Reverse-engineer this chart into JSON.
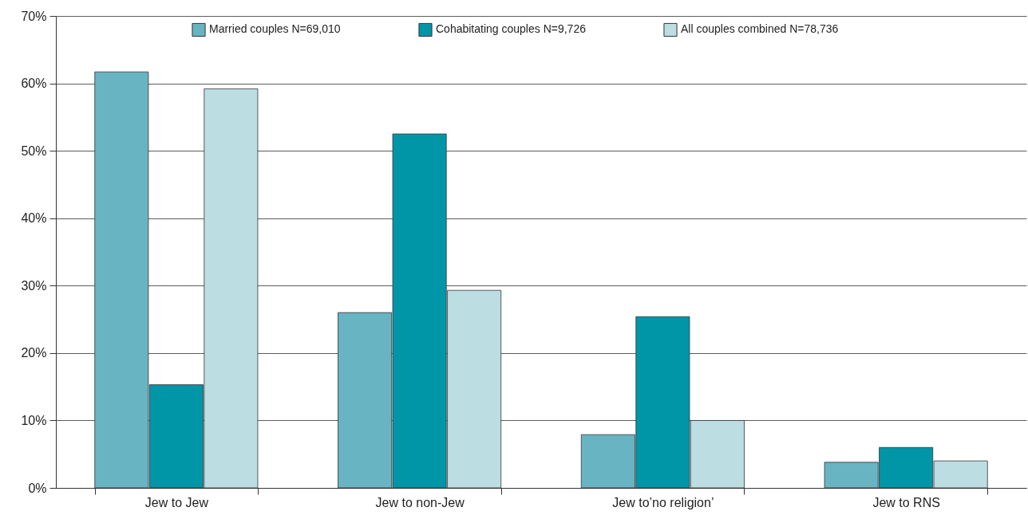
{
  "chart_data": {
    "type": "bar",
    "categories": [
      "Jew to Jew",
      "Jew to non-Jew",
      "Jew to’no religion’",
      "Jew to RNS"
    ],
    "series": [
      {
        "name": "Married couples N=69,010",
        "color": "#68b4c3",
        "values": [
          61.7,
          26,
          7.9,
          3.8
        ]
      },
      {
        "name": "Cohabitating couples N=9,726",
        "color": "#0096a8",
        "values": [
          15.3,
          52.5,
          25.4,
          6
        ]
      },
      {
        "name": "All couples combined N=78,736",
        "color": "#bcdde2",
        "values": [
          59.2,
          29.3,
          10,
          4
        ]
      }
    ],
    "ylim": [
      0,
      70
    ],
    "yticks": [
      {
        "value": 0,
        "label": "0%"
      },
      {
        "value": 10,
        "label": "10%"
      },
      {
        "value": 20,
        "label": "20%"
      },
      {
        "value": 30,
        "label": "30%"
      },
      {
        "value": 40,
        "label": "40%"
      },
      {
        "value": 50,
        "label": "50%"
      },
      {
        "value": 60,
        "label": "60%"
      },
      {
        "value": 70,
        "label": "70%"
      }
    ],
    "grid": "y",
    "legend": "top right"
  }
}
